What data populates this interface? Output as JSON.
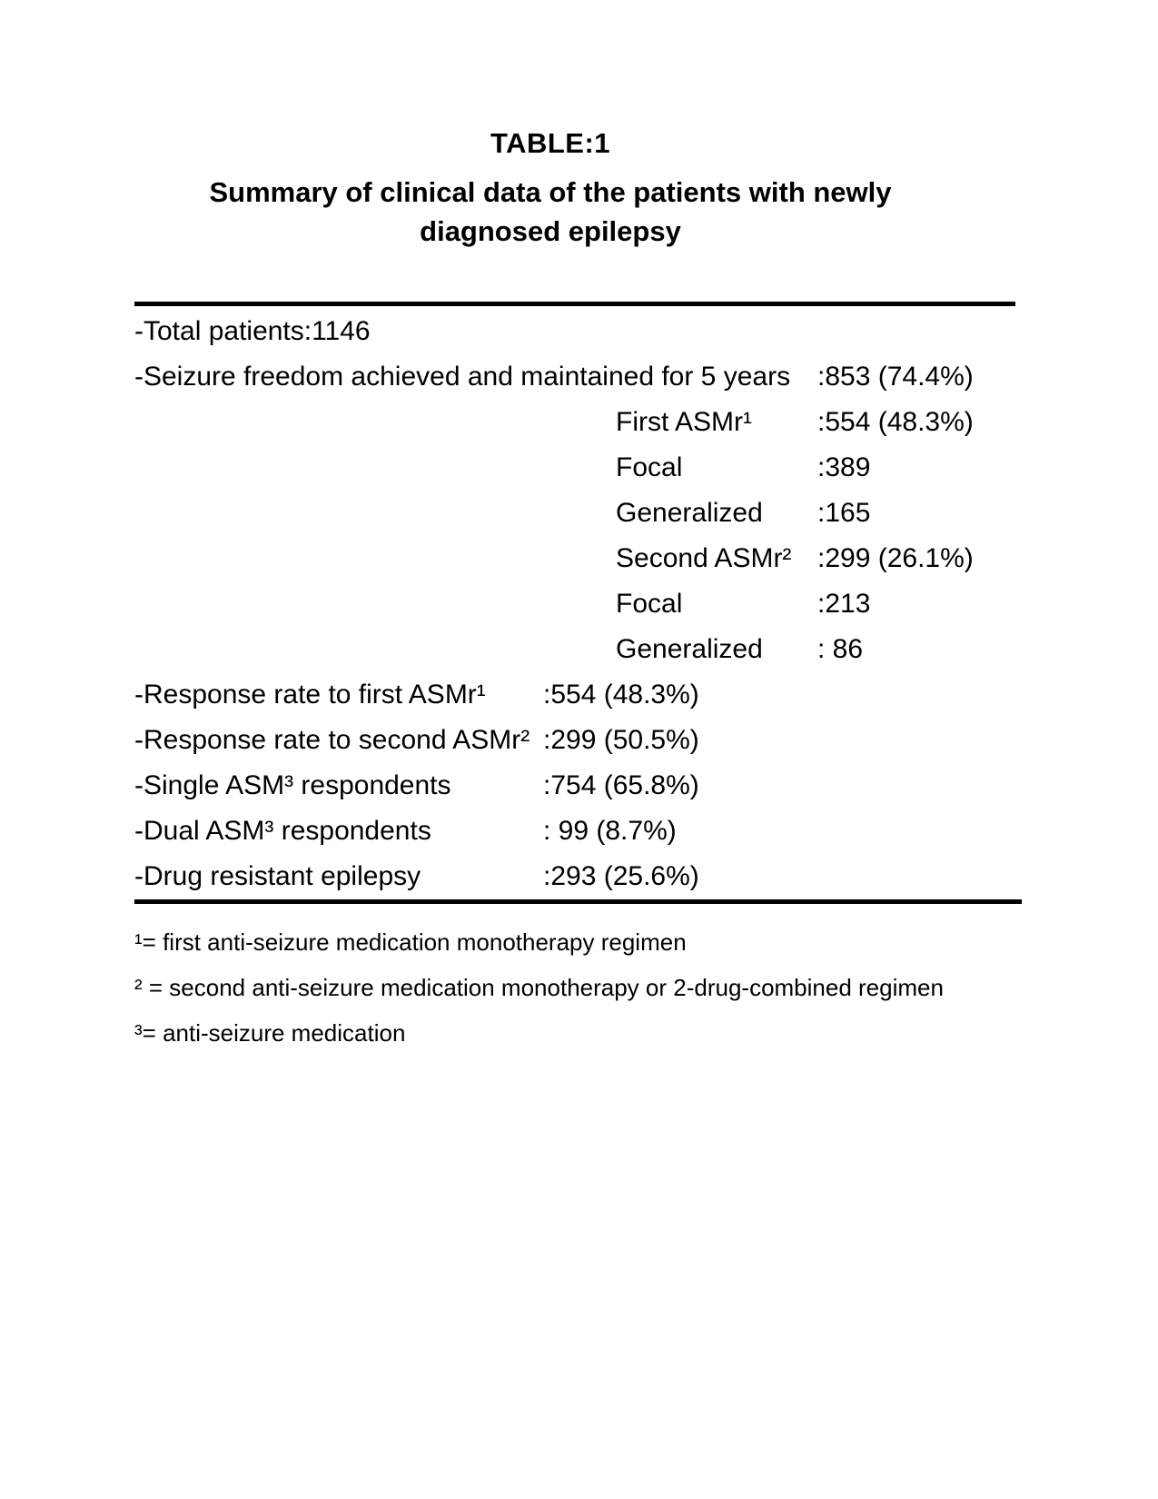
{
  "page": {
    "title": "TABLE:1",
    "subtitle_line1": "Summary of clinical data of the patients with newly",
    "subtitle_line2": "diagnosed epilepsy"
  },
  "table": {
    "rows": [
      {
        "label": "-Total patients:1146",
        "sub": "",
        "mid": "",
        "right": ""
      },
      {
        "label": "-Seizure freedom achieved and maintained for 5 years",
        "sub": "",
        "mid": "",
        "right": ":853 (74.4%)"
      },
      {
        "label": "",
        "sub": "First ASMr¹",
        "mid": "",
        "right": ":554 (48.3%)"
      },
      {
        "label": "",
        "sub": "Focal",
        "mid": "",
        "right": ":389"
      },
      {
        "label": "",
        "sub": "Generalized",
        "mid": "",
        "right": ":165"
      },
      {
        "label": "",
        "sub": "Second ASMr²",
        "mid": "",
        "right": ":299 (26.1%)"
      },
      {
        "label": "",
        "sub": "Focal",
        "mid": "",
        "right": ":213"
      },
      {
        "label": "",
        "sub": "Generalized",
        "mid": "",
        "right": ": 86"
      },
      {
        "label": "-Response rate to first ASMr¹",
        "sub": "",
        "mid": ":554 (48.3%)",
        "right": ""
      },
      {
        "label": "-Response rate to second ASMr²",
        "sub": "",
        "mid": ":299 (50.5%)",
        "right": ""
      },
      {
        "label": "-Single ASM³ respondents",
        "sub": "",
        "mid": ":754 (65.8%)",
        "right": ""
      },
      {
        "label": "-Dual ASM³ respondents",
        "sub": "",
        "mid": ": 99 (8.7%)",
        "right": ""
      },
      {
        "label": "-Drug resistant epilepsy",
        "sub": "",
        "mid": ":293 (25.6%)",
        "right": ""
      }
    ]
  },
  "footnotes": [
    "¹= first anti-seizure medication monotherapy regimen",
    "² = second anti-seizure medication monotherapy or 2-drug-combined regimen",
    "³= anti-seizure medication"
  ],
  "colors": {
    "background": "#ffffff",
    "text": "#000000",
    "rule": "#000000"
  }
}
